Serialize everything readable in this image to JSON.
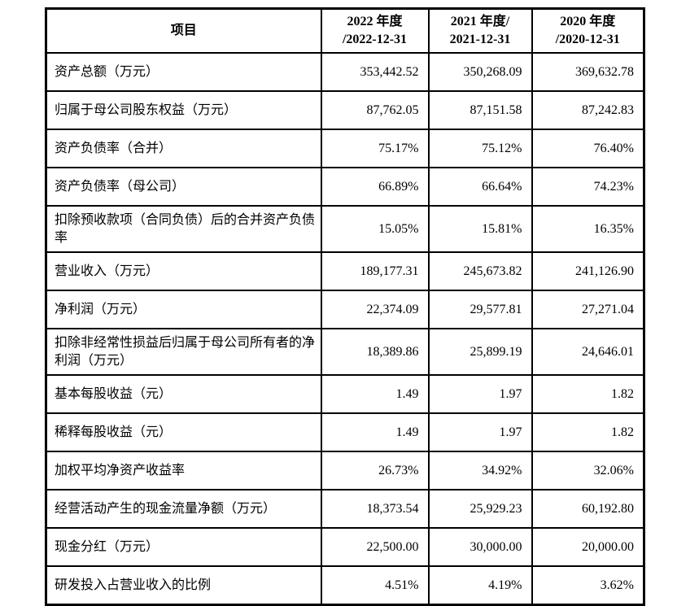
{
  "table": {
    "header": {
      "item": "项目",
      "col_2022_line1": "2022 年度",
      "col_2022_line2": "/2022-12-31",
      "col_2021_line1": "2021 年度/",
      "col_2021_line2": "2021-12-31",
      "col_2020_line1": "2020 年度",
      "col_2020_line2": "/2020-12-31"
    },
    "rows": [
      {
        "label": "资产总额（万元）",
        "values": [
          "353,442.52",
          "350,268.09",
          "369,632.78"
        ]
      },
      {
        "label": "归属于母公司股东权益（万元）",
        "values": [
          "87,762.05",
          "87,151.58",
          "87,242.83"
        ]
      },
      {
        "label": "资产负债率（合并）",
        "values": [
          "75.17%",
          "75.12%",
          "76.40%"
        ]
      },
      {
        "label": "资产负债率（母公司）",
        "values": [
          "66.89%",
          "66.64%",
          "74.23%"
        ]
      },
      {
        "label": "扣除预收款项（合同负债）后的合并资产负债率",
        "values": [
          "15.05%",
          "15.81%",
          "16.35%"
        ]
      },
      {
        "label": "营业收入（万元）",
        "values": [
          "189,177.31",
          "245,673.82",
          "241,126.90"
        ]
      },
      {
        "label": "净利润（万元）",
        "values": [
          "22,374.09",
          "29,577.81",
          "27,271.04"
        ]
      },
      {
        "label": "扣除非经常性损益后归属于母公司所有者的净利润（万元）",
        "values": [
          "18,389.86",
          "25,899.19",
          "24,646.01"
        ]
      },
      {
        "label": "基本每股收益（元）",
        "values": [
          "1.49",
          "1.97",
          "1.82"
        ]
      },
      {
        "label": "稀释每股收益（元）",
        "values": [
          "1.49",
          "1.97",
          "1.82"
        ]
      },
      {
        "label": "加权平均净资产收益率",
        "values": [
          "26.73%",
          "34.92%",
          "32.06%"
        ]
      },
      {
        "label": "经营活动产生的现金流量净额（万元）",
        "values": [
          "18,373.54",
          "25,929.23",
          "60,192.80"
        ]
      },
      {
        "label": "现金分红（万元）",
        "values": [
          "22,500.00",
          "30,000.00",
          "20,000.00"
        ]
      },
      {
        "label": "研发投入占营业收入的比例",
        "values": [
          "4.51%",
          "4.19%",
          "3.62%"
        ]
      }
    ],
    "colors": {
      "border": "#000000",
      "text": "#000000",
      "background": "#ffffff"
    }
  }
}
